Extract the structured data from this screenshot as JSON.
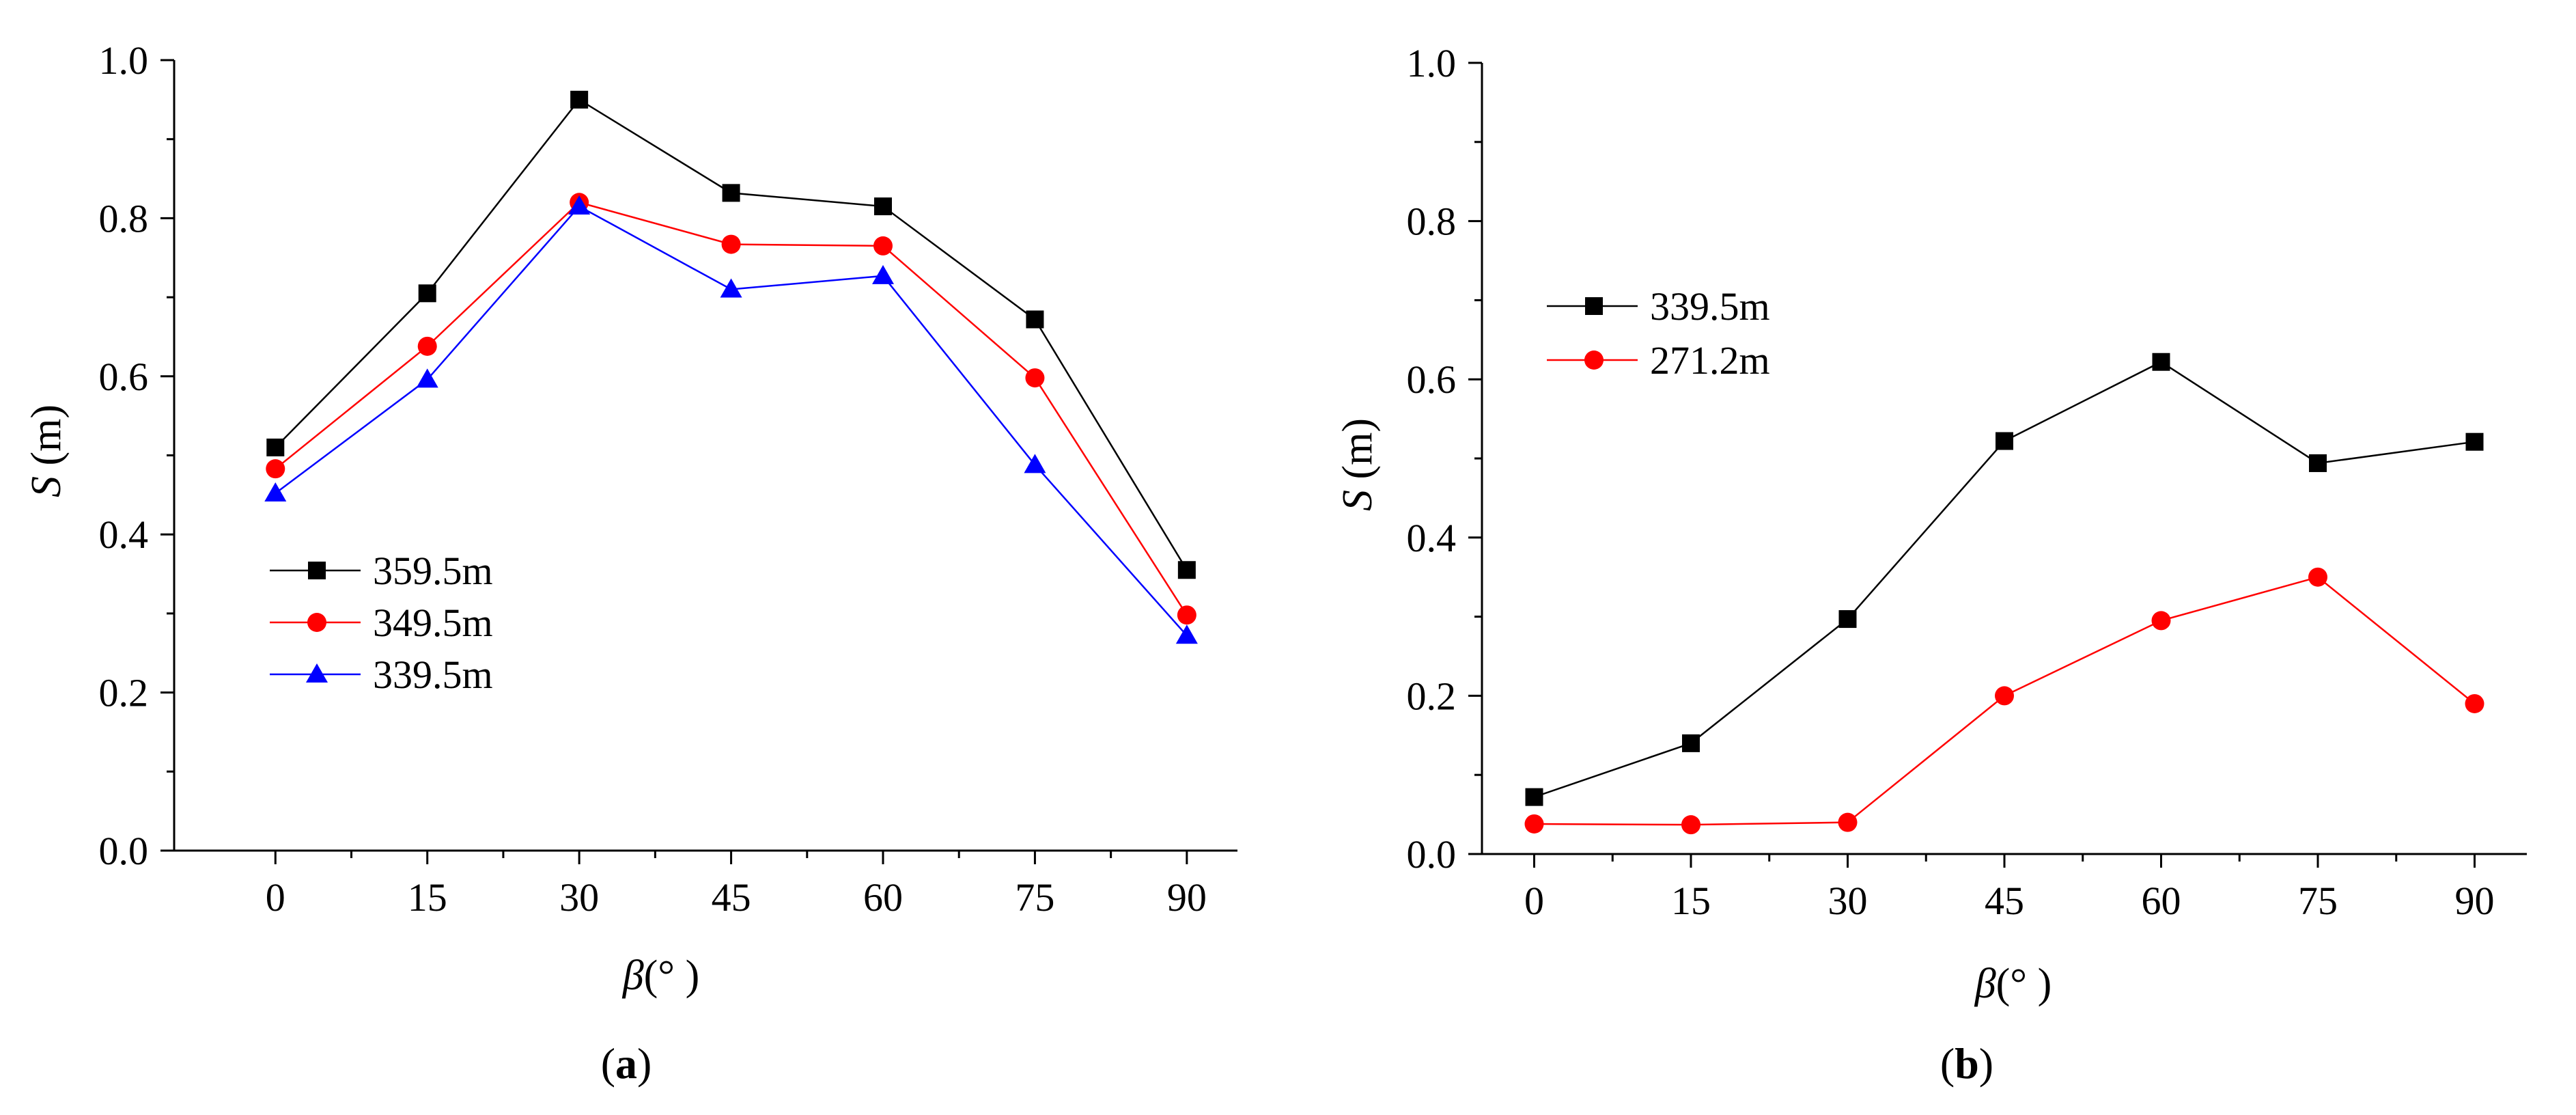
{
  "chart_data": [
    {
      "type": "line",
      "panel_label": "a",
      "xlabel_symbol": "β",
      "xlabel_unit": "(°  )",
      "ylabel_symbol": "S",
      "ylabel_unit": " (m)",
      "x": [
        0,
        15,
        30,
        45,
        60,
        75,
        90
      ],
      "xticks": [
        "0",
        "15",
        "30",
        "45",
        "60",
        "75",
        "90"
      ],
      "yticks": [
        "0.0",
        "0.2",
        "0.4",
        "0.6",
        "0.8",
        "1.0"
      ],
      "xlim": [
        -10,
        95
      ],
      "ylim": [
        0,
        1.0
      ],
      "legend_position": "lower-left",
      "series": [
        {
          "name": "359.5m",
          "color": "#000000",
          "marker": "square",
          "values": [
            0.51,
            0.705,
            0.95,
            0.832,
            0.815,
            0.672,
            0.355
          ]
        },
        {
          "name": "349.5m",
          "color": "#ff0000",
          "marker": "circle",
          "values": [
            0.483,
            0.638,
            0.82,
            0.767,
            0.765,
            0.598,
            0.298
          ]
        },
        {
          "name": "339.5m",
          "color": "#0000ff",
          "marker": "triangle",
          "values": [
            0.452,
            0.596,
            0.815,
            0.71,
            0.727,
            0.488,
            0.272
          ]
        }
      ]
    },
    {
      "type": "line",
      "panel_label": "b",
      "xlabel_symbol": "β",
      "xlabel_unit": "(°  )",
      "ylabel_symbol": "S",
      "ylabel_unit": " (m)",
      "x": [
        0,
        15,
        30,
        45,
        60,
        75,
        90
      ],
      "xticks": [
        "0",
        "15",
        "30",
        "45",
        "60",
        "75",
        "90"
      ],
      "yticks": [
        "0.0",
        "0.2",
        "0.4",
        "0.6",
        "0.8",
        "1.0"
      ],
      "xlim": [
        -5,
        95
      ],
      "ylim": [
        0,
        1.0
      ],
      "legend_position": "upper-left",
      "series": [
        {
          "name": "339.5m",
          "color": "#000000",
          "marker": "square",
          "values": [
            0.072,
            0.14,
            0.297,
            0.522,
            0.622,
            0.494,
            0.521
          ]
        },
        {
          "name": "271.2m",
          "color": "#ff0000",
          "marker": "circle",
          "values": [
            0.038,
            0.037,
            0.04,
            0.2,
            0.295,
            0.35,
            0.19
          ]
        }
      ]
    }
  ]
}
